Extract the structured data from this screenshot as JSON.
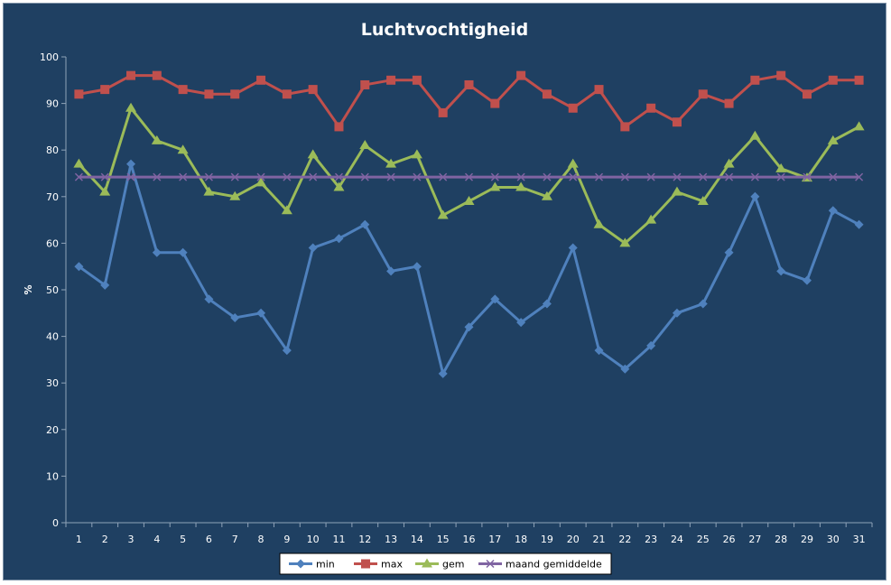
{
  "chart_data": {
    "type": "line",
    "title": "Luchtvochtigheid",
    "xlabel": "",
    "ylabel": "%",
    "ylim": [
      0,
      100
    ],
    "yticks": [
      0,
      10,
      20,
      30,
      40,
      50,
      60,
      70,
      80,
      90,
      100
    ],
    "grid": false,
    "legend_position": "bottom",
    "x": [
      1,
      2,
      3,
      4,
      5,
      6,
      7,
      8,
      9,
      10,
      11,
      12,
      13,
      14,
      15,
      16,
      17,
      18,
      19,
      20,
      21,
      22,
      23,
      24,
      25,
      26,
      27,
      28,
      29,
      30,
      31
    ],
    "series": [
      {
        "name": "min",
        "color": "#4f81bd",
        "marker": "diamond",
        "values": [
          55,
          51,
          77,
          58,
          58,
          48,
          44,
          45,
          37,
          59,
          61,
          64,
          54,
          55,
          32,
          42,
          48,
          43,
          47,
          59,
          37,
          33,
          38,
          45,
          47,
          58,
          70,
          54,
          52,
          67,
          64
        ]
      },
      {
        "name": "max",
        "color": "#c0504d",
        "marker": "square",
        "values": [
          92,
          93,
          96,
          96,
          93,
          92,
          92,
          95,
          92,
          93,
          85,
          94,
          95,
          95,
          88,
          94,
          90,
          96,
          92,
          89,
          93,
          85,
          89,
          86,
          92,
          90,
          95,
          96,
          92,
          95,
          95
        ]
      },
      {
        "name": "gem",
        "color": "#9bbb59",
        "marker": "triangle",
        "values": [
          77,
          71,
          89,
          82,
          80,
          71,
          70,
          73,
          67,
          79,
          72,
          81,
          77,
          79,
          66,
          69,
          72,
          72,
          70,
          77,
          64,
          60,
          65,
          71,
          69,
          77,
          83,
          76,
          74,
          82,
          85
        ]
      },
      {
        "name": "maand gemiddelde",
        "color": "#8064a2",
        "marker": "x",
        "values": [
          74.2,
          74.2,
          74.2,
          74.2,
          74.2,
          74.2,
          74.2,
          74.2,
          74.2,
          74.2,
          74.2,
          74.2,
          74.2,
          74.2,
          74.2,
          74.2,
          74.2,
          74.2,
          74.2,
          74.2,
          74.2,
          74.2,
          74.2,
          74.2,
          74.2,
          74.2,
          74.2,
          74.2,
          74.2,
          74.2,
          74.2
        ]
      }
    ]
  }
}
